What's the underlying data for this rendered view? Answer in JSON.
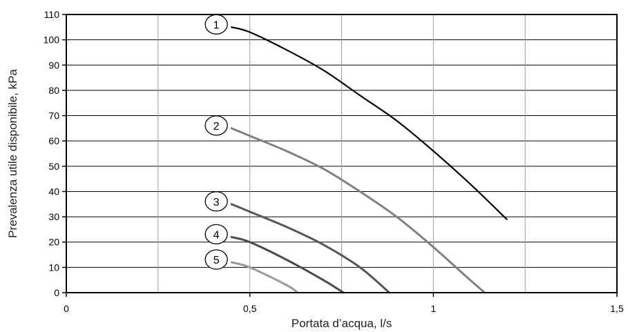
{
  "chart_data": {
    "type": "line",
    "title": "",
    "xlabel": "Portata d’acqua, l/s",
    "ylabel": "Prevalenza utile disponibile, kPa",
    "xlim": [
      0,
      1.5
    ],
    "ylim": [
      0,
      110
    ],
    "x_ticks": [
      0,
      0.5,
      1,
      1.5
    ],
    "x_tick_labels": [
      "0",
      "0,5",
      "1",
      "1,5"
    ],
    "y_ticks": [
      0,
      10,
      20,
      30,
      40,
      50,
      60,
      70,
      80,
      90,
      100,
      110
    ],
    "y_tick_labels": [
      "0",
      "10",
      "20",
      "30",
      "40",
      "50",
      "60",
      "70",
      "80",
      "90",
      "100",
      "110"
    ],
    "x_gridlines": [
      0.25,
      0.5,
      0.75,
      1,
      1.25
    ],
    "grid": true,
    "legend": "none",
    "series": [
      {
        "label": "1",
        "color": "#000000",
        "points": [
          [
            0.45,
            105
          ],
          [
            0.5,
            103
          ],
          [
            0.6,
            96
          ],
          [
            0.7,
            88
          ],
          [
            0.8,
            78
          ],
          [
            0.9,
            68
          ],
          [
            1.0,
            56
          ],
          [
            1.1,
            43
          ],
          [
            1.2,
            29
          ]
        ]
      },
      {
        "label": "2",
        "color": "#808080",
        "points": [
          [
            0.45,
            65
          ],
          [
            0.5,
            62
          ],
          [
            0.6,
            56
          ],
          [
            0.7,
            49
          ],
          [
            0.8,
            40
          ],
          [
            0.9,
            30
          ],
          [
            1.0,
            18
          ],
          [
            1.1,
            5
          ],
          [
            1.14,
            0
          ]
        ]
      },
      {
        "label": "3",
        "color": "#555555",
        "points": [
          [
            0.45,
            35
          ],
          [
            0.5,
            32
          ],
          [
            0.6,
            26
          ],
          [
            0.7,
            19
          ],
          [
            0.8,
            10
          ],
          [
            0.88,
            0
          ]
        ]
      },
      {
        "label": "4",
        "color": "#4a4a4a",
        "points": [
          [
            0.45,
            22
          ],
          [
            0.5,
            20
          ],
          [
            0.6,
            13
          ],
          [
            0.7,
            5
          ],
          [
            0.755,
            0
          ]
        ]
      },
      {
        "label": "5",
        "color": "#999999",
        "points": [
          [
            0.45,
            12
          ],
          [
            0.5,
            10
          ],
          [
            0.6,
            3
          ],
          [
            0.63,
            0
          ]
        ]
      }
    ]
  }
}
